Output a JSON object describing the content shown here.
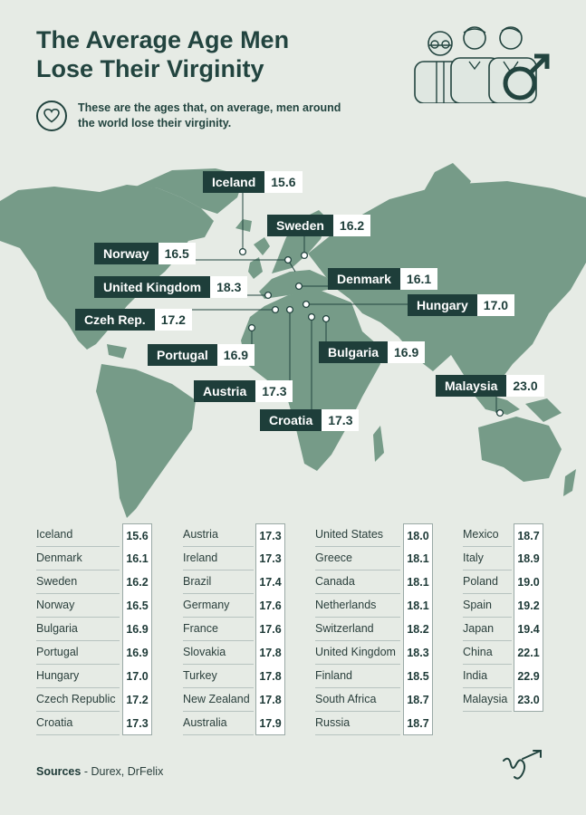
{
  "header": {
    "title": "The Average Age Men\nLose Their Virginity",
    "subtitle": "These are the ages that, on average, men around the world lose their virginity."
  },
  "colors": {
    "dark": "#1e3e3a",
    "land": "#769b88",
    "background": "#e6ebe5"
  },
  "icons": [
    "heart-icon",
    "male-symbol-icon",
    "men-illustration",
    "brand-logo"
  ],
  "map_labels": [
    {
      "country": "Iceland",
      "value": "15.6"
    },
    {
      "country": "Sweden",
      "value": "16.2"
    },
    {
      "country": "Norway",
      "value": "16.5"
    },
    {
      "country": "Denmark",
      "value": "16.1"
    },
    {
      "country": "United Kingdom",
      "value": "18.3"
    },
    {
      "country": "Hungary",
      "value": "17.0"
    },
    {
      "country": "Czeh Rep.",
      "value": "17.2"
    },
    {
      "country": "Portugal",
      "value": "16.9"
    },
    {
      "country": "Bulgaria",
      "value": "16.9"
    },
    {
      "country": "Malaysia",
      "value": "23.0"
    },
    {
      "country": "Austria",
      "value": "17.3"
    },
    {
      "country": "Croatia",
      "value": "17.3"
    }
  ],
  "table": [
    [
      {
        "country": "Iceland",
        "age": "15.6"
      },
      {
        "country": "Denmark",
        "age": "16.1"
      },
      {
        "country": "Sweden",
        "age": "16.2"
      },
      {
        "country": "Norway",
        "age": "16.5"
      },
      {
        "country": "Bulgaria",
        "age": "16.9"
      },
      {
        "country": "Portugal",
        "age": "16.9"
      },
      {
        "country": "Hungary",
        "age": "17.0"
      },
      {
        "country": "Czech Republic",
        "age": "17.2"
      },
      {
        "country": "Croatia",
        "age": "17.3"
      }
    ],
    [
      {
        "country": "Austria",
        "age": "17.3"
      },
      {
        "country": "Ireland",
        "age": "17.3"
      },
      {
        "country": "Brazil",
        "age": "17.4"
      },
      {
        "country": "Germany",
        "age": "17.6"
      },
      {
        "country": "France",
        "age": "17.6"
      },
      {
        "country": "Slovakia",
        "age": "17.8"
      },
      {
        "country": "Turkey",
        "age": "17.8"
      },
      {
        "country": "New Zealand",
        "age": "17.8"
      },
      {
        "country": "Australia",
        "age": "17.9"
      }
    ],
    [
      {
        "country": "United States",
        "age": "18.0"
      },
      {
        "country": "Greece",
        "age": "18.1"
      },
      {
        "country": "Canada",
        "age": "18.1"
      },
      {
        "country": "Netherlands",
        "age": "18.1"
      },
      {
        "country": "Switzerland",
        "age": "18.2"
      },
      {
        "country": "United Kingdom",
        "age": "18.3"
      },
      {
        "country": "Finland",
        "age": "18.5"
      },
      {
        "country": "South Africa",
        "age": "18.7"
      },
      {
        "country": "Russia",
        "age": "18.7"
      }
    ],
    [
      {
        "country": "Mexico",
        "age": "18.7"
      },
      {
        "country": "Italy",
        "age": "18.9"
      },
      {
        "country": "Poland",
        "age": "19.0"
      },
      {
        "country": "Spain",
        "age": "19.2"
      },
      {
        "country": "Japan",
        "age": "19.4"
      },
      {
        "country": "China",
        "age": "22.1"
      },
      {
        "country": "India",
        "age": "22.9"
      },
      {
        "country": "Malaysia",
        "age": "23.0"
      }
    ]
  ],
  "footer": {
    "sources_label": "Sources",
    "sources_text": "- Durex, DrFelix"
  }
}
